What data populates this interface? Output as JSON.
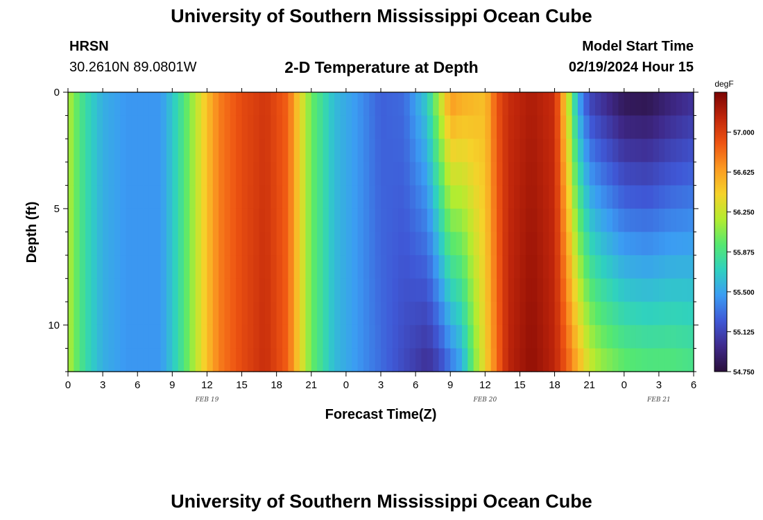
{
  "header": {
    "title": "University of Southern Mississippi Ocean Cube",
    "station": "HRSN",
    "coordinates": "30.2610N  89.0801W",
    "subtitle": "2-D Temperature at Depth",
    "model_start_label": "Model Start Time",
    "model_start_value": "02/19/2024 Hour 15"
  },
  "footer": {
    "title": "University of Southern Mississippi Ocean Cube"
  },
  "chart_data": {
    "type": "heatmap",
    "title": "2-D Temperature at Depth",
    "xlabel": "Forecast Time(Z)",
    "ylabel": "Depth (ft)",
    "x_hours_from_start": [
      0,
      54
    ],
    "x_tick_labels": [
      "0",
      "3",
      "6",
      "9",
      "12",
      "15",
      "18",
      "21",
      "0",
      "3",
      "6",
      "9",
      "12",
      "15",
      "18",
      "21",
      "0",
      "3",
      "6"
    ],
    "date_labels": [
      {
        "label": "FEB 19",
        "hour": 12
      },
      {
        "label": "FEB 20",
        "hour": 36
      },
      {
        "label": "FEB 21",
        "hour": 51
      }
    ],
    "y_range": [
      0,
      12
    ],
    "y_ticks": [
      0,
      5,
      10
    ],
    "colorbar": {
      "unit": "degF",
      "range": [
        54.75,
        57.375
      ],
      "ticks": [
        "54.750",
        "55.125",
        "55.500",
        "55.875",
        "56.250",
        "56.625",
        "57.000"
      ],
      "colormap": [
        "#2a0f3a",
        "#3f2a8c",
        "#3f58d6",
        "#3b9cf3",
        "#2fd1c0",
        "#55e870",
        "#b3ec30",
        "#f5d22a",
        "#fb9a22",
        "#ee5412",
        "#c0260b",
        "#7a0403"
      ]
    },
    "temperature_profile": [
      {
        "hour": 0,
        "surface": 56.2,
        "bottom": 56.2
      },
      {
        "hour": 1,
        "surface": 55.9,
        "bottom": 55.9
      },
      {
        "hour": 2,
        "surface": 55.7,
        "bottom": 55.7
      },
      {
        "hour": 3,
        "surface": 55.55,
        "bottom": 55.55
      },
      {
        "hour": 5,
        "surface": 55.45,
        "bottom": 55.45
      },
      {
        "hour": 8,
        "surface": 55.45,
        "bottom": 55.45
      },
      {
        "hour": 9,
        "surface": 55.65,
        "bottom": 55.65
      },
      {
        "hour": 10,
        "surface": 55.9,
        "bottom": 55.9
      },
      {
        "hour": 11,
        "surface": 56.2,
        "bottom": 56.2
      },
      {
        "hour": 12,
        "surface": 56.5,
        "bottom": 56.5
      },
      {
        "hour": 13,
        "surface": 56.75,
        "bottom": 56.75
      },
      {
        "hour": 15,
        "surface": 56.95,
        "bottom": 56.95
      },
      {
        "hour": 17,
        "surface": 57.05,
        "bottom": 57.1
      },
      {
        "hour": 19,
        "surface": 56.85,
        "bottom": 56.85
      },
      {
        "hour": 20,
        "surface": 56.4,
        "bottom": 56.4
      },
      {
        "hour": 21,
        "surface": 56.0,
        "bottom": 56.0
      },
      {
        "hour": 22,
        "surface": 55.8,
        "bottom": 55.8
      },
      {
        "hour": 23,
        "surface": 55.6,
        "bottom": 55.6
      },
      {
        "hour": 25,
        "surface": 55.45,
        "bottom": 55.45
      },
      {
        "hour": 27,
        "surface": 55.25,
        "bottom": 55.3
      },
      {
        "hour": 29,
        "surface": 55.3,
        "bottom": 55.15
      },
      {
        "hour": 31,
        "surface": 55.7,
        "bottom": 55.0
      },
      {
        "hour": 32,
        "surface": 56.2,
        "bottom": 55.1
      },
      {
        "hour": 33,
        "surface": 56.7,
        "bottom": 55.3
      },
      {
        "hour": 34,
        "surface": 56.6,
        "bottom": 55.5
      },
      {
        "hour": 35,
        "surface": 56.55,
        "bottom": 56.0
      },
      {
        "hour": 36,
        "surface": 56.5,
        "bottom": 56.4
      },
      {
        "hour": 37,
        "surface": 56.9,
        "bottom": 56.8
      },
      {
        "hour": 38,
        "surface": 57.1,
        "bottom": 57.15
      },
      {
        "hour": 40,
        "surface": 57.2,
        "bottom": 57.3
      },
      {
        "hour": 42,
        "surface": 57.1,
        "bottom": 57.15
      },
      {
        "hour": 43,
        "surface": 56.4,
        "bottom": 56.9
      },
      {
        "hour": 44,
        "surface": 55.5,
        "bottom": 56.6
      },
      {
        "hour": 45,
        "surface": 55.1,
        "bottom": 56.3
      },
      {
        "hour": 46,
        "surface": 55.0,
        "bottom": 56.15
      },
      {
        "hour": 48,
        "surface": 54.8,
        "bottom": 56.0
      },
      {
        "hour": 50,
        "surface": 54.78,
        "bottom": 55.95
      },
      {
        "hour": 52,
        "surface": 54.9,
        "bottom": 55.95
      },
      {
        "hour": 54,
        "surface": 55.0,
        "bottom": 55.9
      }
    ]
  }
}
